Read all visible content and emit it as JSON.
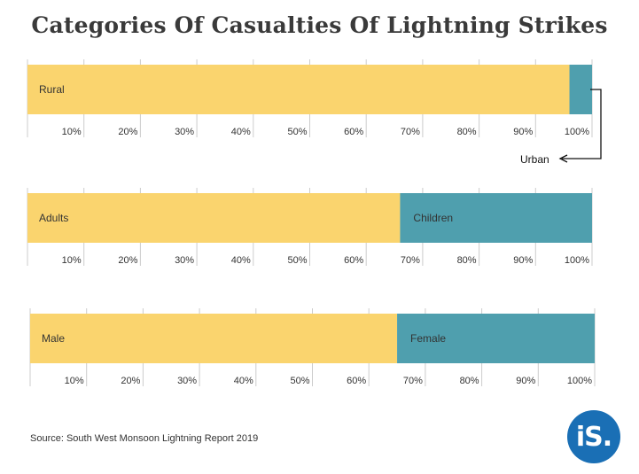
{
  "title": "Categories Of Casualties Of Lightning Strikes",
  "source": "Source: South West Monsoon Lightning Report 2019",
  "logo_text": "iS.",
  "colors": {
    "primary": "#fad46e",
    "secondary": "#4f9fae",
    "grid": "#cccccc",
    "text": "#333333"
  },
  "chart_data": {
    "type": "bar",
    "orientation": "horizontal",
    "stacked": true,
    "xlim": [
      0,
      100
    ],
    "ticks": [
      "10%",
      "20%",
      "30%",
      "40%",
      "50%",
      "60%",
      "70%",
      "80%",
      "90%",
      "100%"
    ],
    "grid": true,
    "bars": [
      {
        "segments": [
          {
            "label": "Rural",
            "value": 96
          },
          {
            "label": "Urban",
            "value": 4
          }
        ]
      },
      {
        "segments": [
          {
            "label": "Adults",
            "value": 66
          },
          {
            "label": "Children",
            "value": 34
          }
        ]
      },
      {
        "segments": [
          {
            "label": "Male",
            "value": 65
          },
          {
            "label": "Female",
            "value": 35
          }
        ]
      }
    ]
  }
}
